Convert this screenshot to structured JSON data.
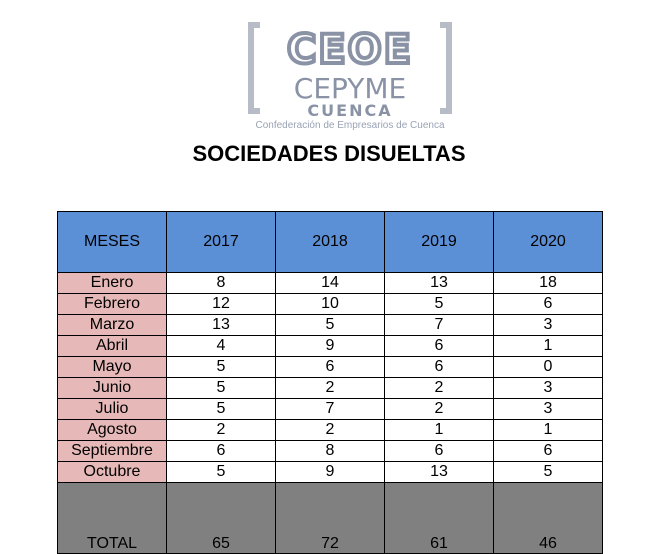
{
  "logo": {
    "line1": "CEOE",
    "line2": "CEPYME",
    "line3": "CUENCA",
    "tagline": "Confederación de Empresarios de Cuenca"
  },
  "title": "SOCIEDADES DISUELTAS",
  "table": {
    "headers": [
      "MESES",
      "2017",
      "2018",
      "2019",
      "2020"
    ],
    "rows": [
      {
        "month": "Enero",
        "values": [
          "8",
          "14",
          "13",
          "18"
        ]
      },
      {
        "month": "Febrero",
        "values": [
          "12",
          "10",
          "5",
          "6"
        ]
      },
      {
        "month": "Marzo",
        "values": [
          "13",
          "5",
          "7",
          "3"
        ]
      },
      {
        "month": "Abril",
        "values": [
          "4",
          "9",
          "6",
          "1"
        ]
      },
      {
        "month": "Mayo",
        "values": [
          "5",
          "6",
          "6",
          "0"
        ]
      },
      {
        "month": "Junio",
        "values": [
          "5",
          "2",
          "2",
          "3"
        ]
      },
      {
        "month": "Julio",
        "values": [
          "5",
          "7",
          "2",
          "3"
        ]
      },
      {
        "month": "Agosto",
        "values": [
          "2",
          "2",
          "1",
          "1"
        ]
      },
      {
        "month": "Septiembre",
        "values": [
          "6",
          "8",
          "6",
          "6"
        ]
      },
      {
        "month": "Octubre",
        "values": [
          "5",
          "9",
          "13",
          "5"
        ]
      }
    ],
    "total": {
      "label": "TOTAL",
      "values": [
        "65",
        "72",
        "61",
        "46"
      ]
    }
  },
  "colors": {
    "header_bg": "#5b8fd6",
    "month_bg": "#e6b9b8",
    "total_bg": "#808080",
    "logo_gray": "#8a93a6"
  }
}
